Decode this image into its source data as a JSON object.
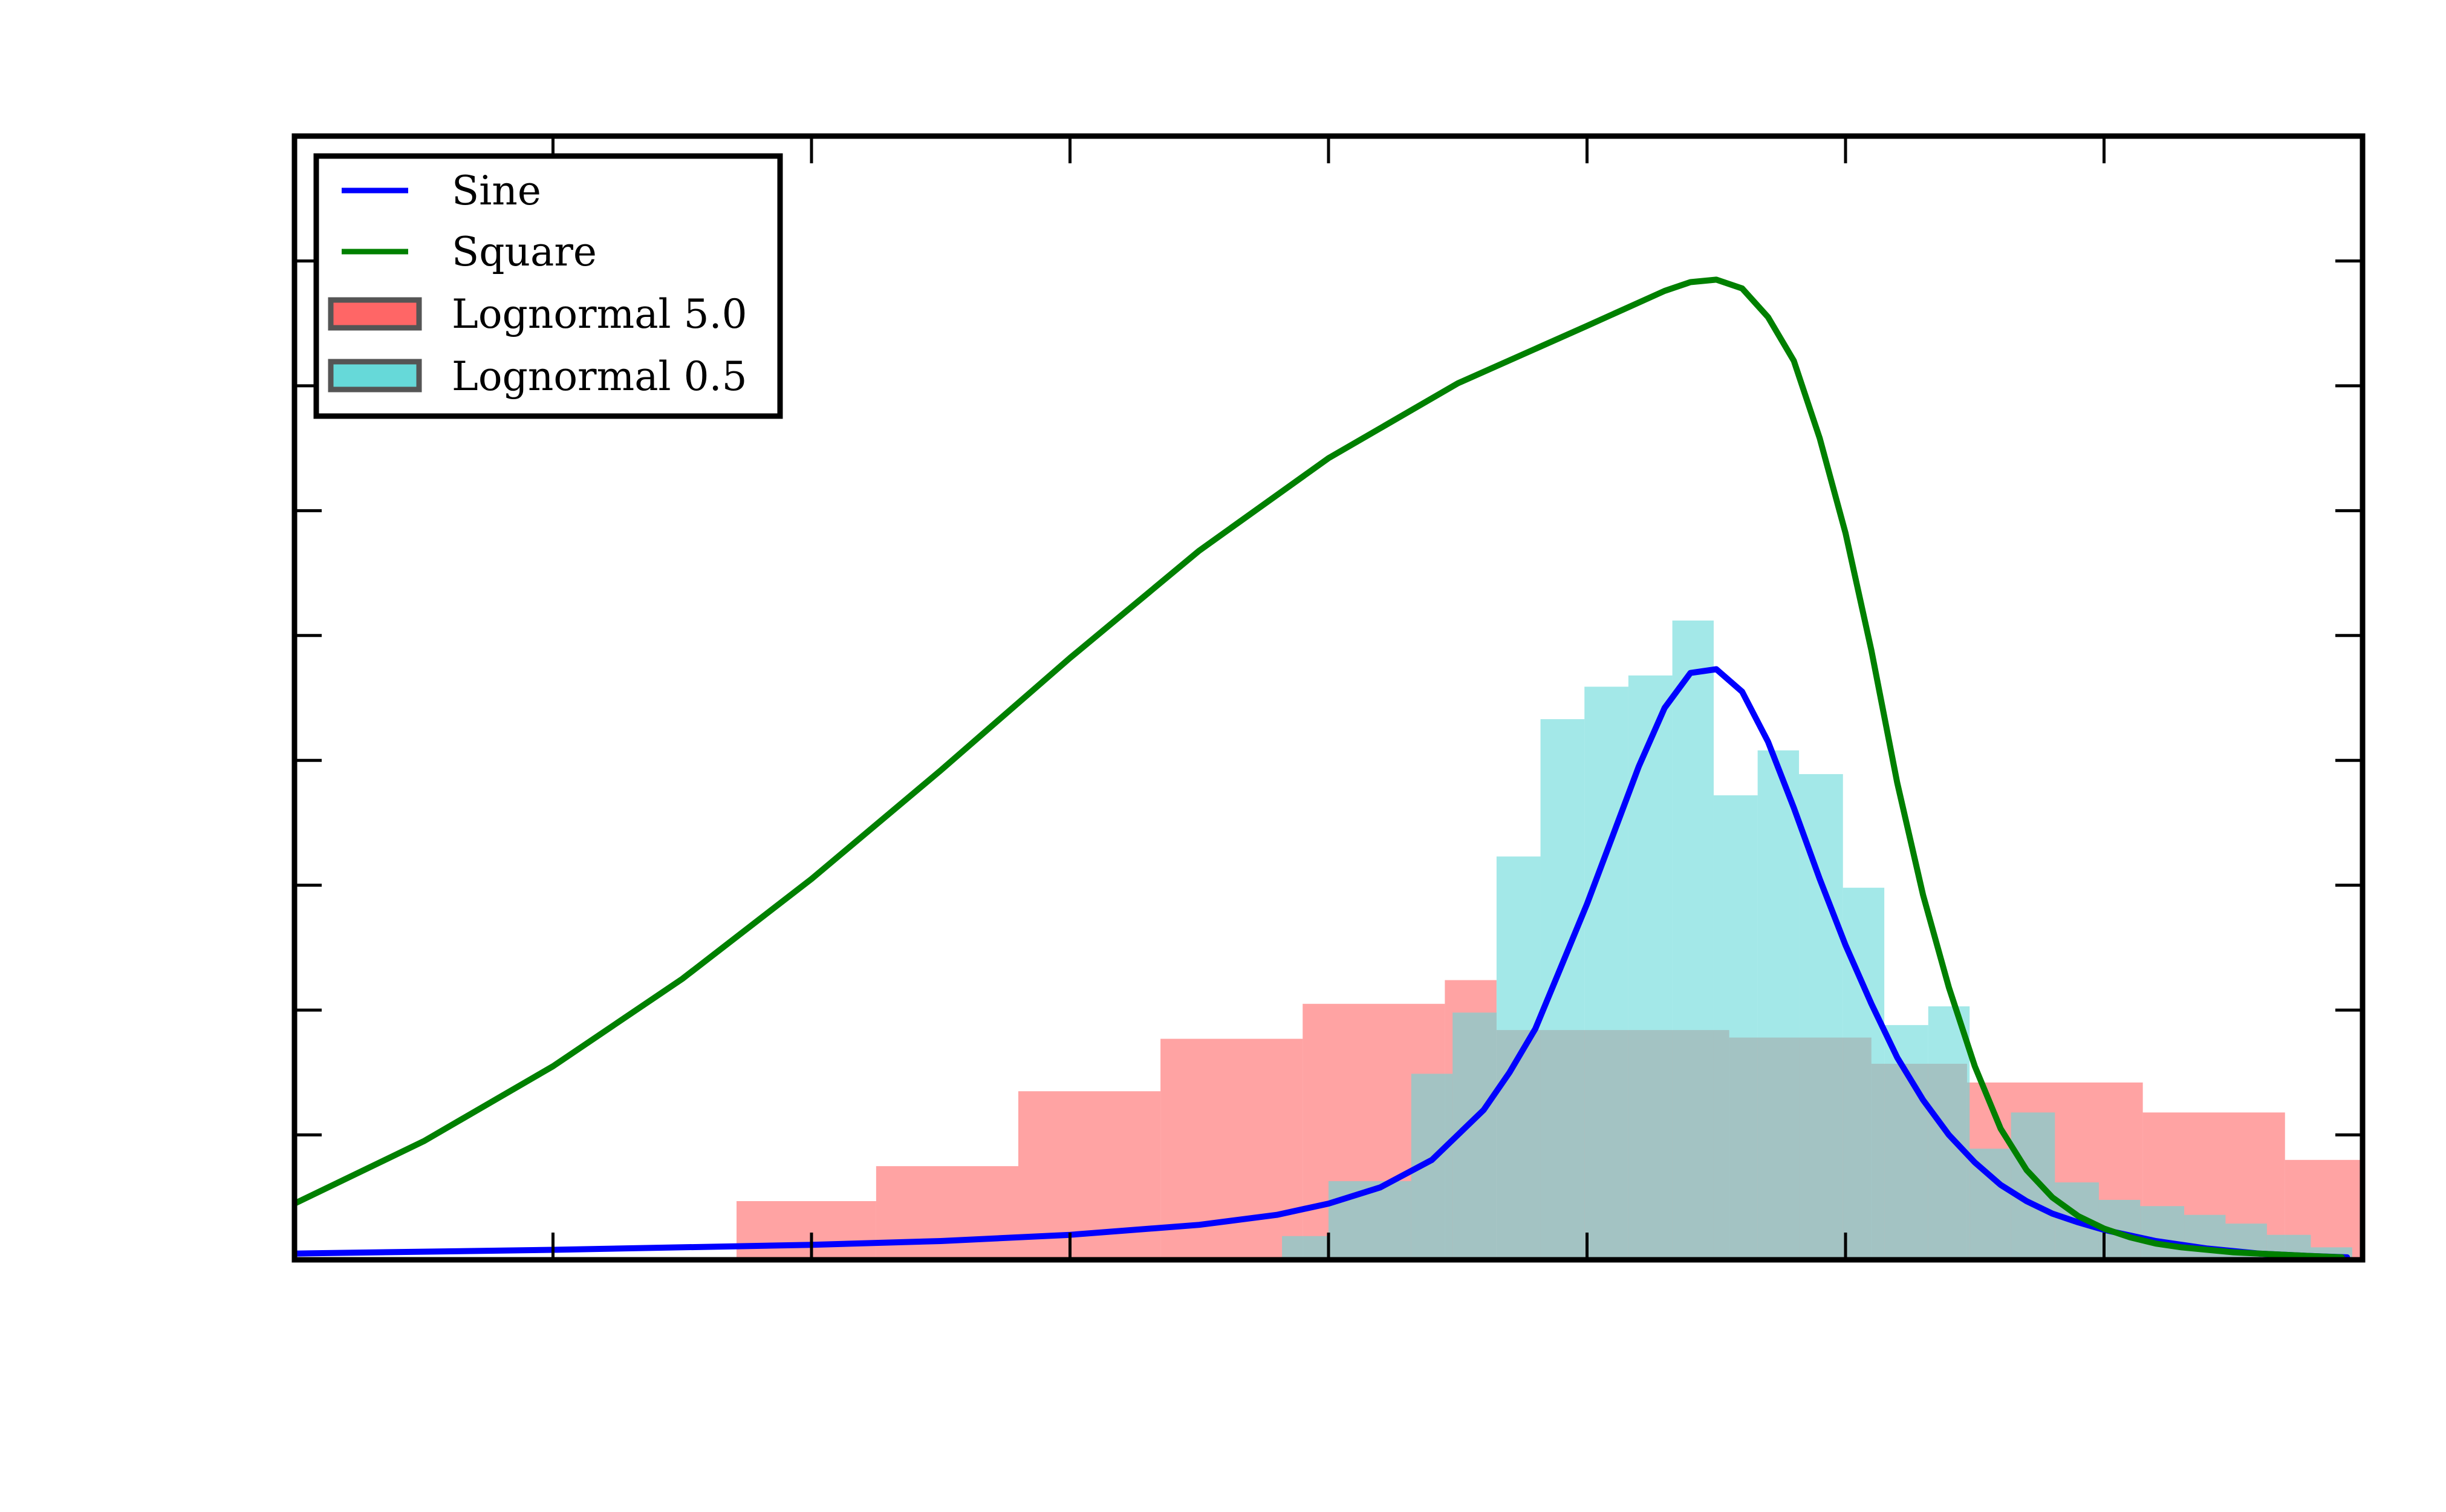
{
  "chart_data": {
    "type": "area",
    "title": "",
    "xlabel": "",
    "ylabel": "",
    "xlim": [
      0,
      8
    ],
    "ylim": [
      0,
      9
    ],
    "x_ticks": [
      1,
      2,
      3,
      4,
      5,
      6,
      7
    ],
    "y_ticks": [
      1,
      2,
      3,
      4,
      5,
      6,
      7,
      8
    ],
    "tick_labels_visible": false,
    "grid": false,
    "legend_position": "top-left",
    "series": [
      {
        "name": "Lognormal 5.0",
        "kind": "histogram",
        "color": "#ff6666",
        "opacity": 0.6,
        "bins": [
          [
            1.71,
            2.25,
            0.47
          ],
          [
            2.25,
            2.8,
            0.75
          ],
          [
            2.8,
            3.35,
            1.35
          ],
          [
            3.35,
            3.9,
            1.77
          ],
          [
            3.9,
            4.45,
            2.05
          ],
          [
            4.45,
            4.65,
            2.24
          ],
          [
            4.65,
            5.55,
            1.84
          ],
          [
            5.55,
            6.1,
            1.78
          ],
          [
            6.1,
            6.47,
            1.57
          ],
          [
            6.47,
            7.15,
            1.42
          ],
          [
            7.15,
            7.7,
            1.18
          ],
          [
            7.7,
            8.0,
            0.8
          ]
        ]
      },
      {
        "name": "Lognormal 0.5",
        "kind": "histogram",
        "color": "#66d9d9",
        "opacity": 0.6,
        "bins": [
          [
            3.82,
            4.0,
            0.19
          ],
          [
            4.0,
            4.32,
            0.63
          ],
          [
            4.32,
            4.48,
            1.49
          ],
          [
            4.48,
            4.65,
            1.98
          ],
          [
            4.65,
            4.82,
            3.23
          ],
          [
            4.82,
            4.99,
            4.33
          ],
          [
            4.99,
            5.16,
            4.59
          ],
          [
            5.16,
            5.33,
            4.68
          ],
          [
            5.33,
            5.49,
            5.12
          ],
          [
            5.49,
            5.66,
            3.72
          ],
          [
            5.66,
            5.82,
            4.08
          ],
          [
            5.82,
            5.99,
            3.89
          ],
          [
            5.99,
            6.15,
            2.98
          ],
          [
            6.15,
            6.32,
            1.88
          ],
          [
            6.32,
            6.48,
            2.03
          ],
          [
            6.48,
            6.64,
            0.89
          ],
          [
            6.64,
            6.81,
            1.18
          ],
          [
            6.81,
            6.98,
            0.62
          ],
          [
            6.98,
            7.14,
            0.48
          ],
          [
            7.14,
            7.31,
            0.43
          ],
          [
            7.31,
            7.47,
            0.36
          ],
          [
            7.47,
            7.63,
            0.29
          ],
          [
            7.63,
            7.8,
            0.2
          ],
          [
            7.8,
            7.96,
            0.1
          ]
        ]
      },
      {
        "name": "Sine",
        "kind": "line",
        "color": "#0000ff",
        "x": [
          0.0,
          1.0,
          2.0,
          2.5,
          3.0,
          3.5,
          3.8,
          4.0,
          4.2,
          4.4,
          4.6,
          4.7,
          4.8,
          4.9,
          5.0,
          5.1,
          5.2,
          5.3,
          5.4,
          5.5,
          5.6,
          5.7,
          5.8,
          5.9,
          6.0,
          6.1,
          6.2,
          6.3,
          6.4,
          6.5,
          6.6,
          6.7,
          6.8,
          6.9,
          7.0,
          7.2,
          7.4,
          7.6,
          7.8,
          7.94
        ],
        "y": [
          0.05,
          0.08,
          0.12,
          0.15,
          0.2,
          0.28,
          0.36,
          0.45,
          0.58,
          0.8,
          1.2,
          1.5,
          1.85,
          2.35,
          2.85,
          3.4,
          3.95,
          4.42,
          4.7,
          4.73,
          4.55,
          4.15,
          3.62,
          3.05,
          2.52,
          2.05,
          1.62,
          1.28,
          1.0,
          0.78,
          0.6,
          0.47,
          0.37,
          0.3,
          0.24,
          0.15,
          0.09,
          0.05,
          0.03,
          0.02
        ]
      },
      {
        "name": "Square",
        "kind": "line",
        "color": "#008000",
        "x": [
          0.0,
          0.5,
          1.0,
          1.5,
          2.0,
          2.5,
          3.0,
          3.5,
          4.0,
          4.5,
          5.0,
          5.3,
          5.4,
          5.5,
          5.6,
          5.7,
          5.8,
          5.9,
          6.0,
          6.1,
          6.2,
          6.3,
          6.4,
          6.5,
          6.6,
          6.7,
          6.8,
          6.9,
          7.0,
          7.1,
          7.2,
          7.3,
          7.4,
          7.5,
          7.6,
          7.7,
          7.8,
          7.92
        ],
        "y": [
          0.45,
          0.95,
          1.55,
          2.25,
          3.05,
          3.92,
          4.82,
          5.68,
          6.42,
          7.02,
          7.48,
          7.76,
          7.83,
          7.85,
          7.78,
          7.55,
          7.2,
          6.58,
          5.82,
          4.88,
          3.82,
          2.92,
          2.18,
          1.55,
          1.05,
          0.72,
          0.5,
          0.35,
          0.25,
          0.18,
          0.13,
          0.1,
          0.08,
          0.06,
          0.05,
          0.04,
          0.03,
          0.02
        ]
      }
    ]
  }
}
